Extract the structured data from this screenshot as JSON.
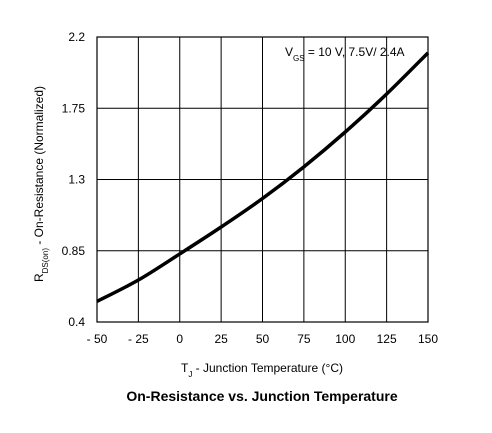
{
  "chart_data": {
    "type": "line",
    "title": "On-Resistance vs. Junction Temperature",
    "xlabel": {
      "main": "T",
      "sub": "J",
      "rest": " - Junction Temperature (°C)"
    },
    "ylabel": {
      "main": "R",
      "sub": "DS(on)",
      "rest": " - On-Resistance (Normalized)"
    },
    "annotation": {
      "main": "V",
      "sub": "GS",
      "rest": " = 10 V, 7.5V/ 2.4A"
    },
    "xlim": [
      -50,
      150
    ],
    "ylim": [
      0.4,
      2.2
    ],
    "x_ticks": [
      -50,
      -25,
      0,
      25,
      50,
      75,
      100,
      125,
      150
    ],
    "x_tick_labels": [
      "- 50",
      "- 25",
      "0",
      "25",
      "50",
      "75",
      "100",
      "125",
      "150"
    ],
    "y_ticks": [
      0.4,
      0.85,
      1.3,
      1.75,
      2.2
    ],
    "y_tick_labels": [
      "0.4",
      "0.85",
      "1.3",
      "1.75",
      "2.2"
    ],
    "grid": true,
    "series": [
      {
        "color": "#000000",
        "x": [
          -50,
          -25,
          0,
          25,
          50,
          75,
          100,
          125,
          150
        ],
        "y": [
          0.53,
          0.665,
          0.83,
          1.0,
          1.18,
          1.38,
          1.6,
          1.84,
          2.1
        ]
      }
    ]
  }
}
